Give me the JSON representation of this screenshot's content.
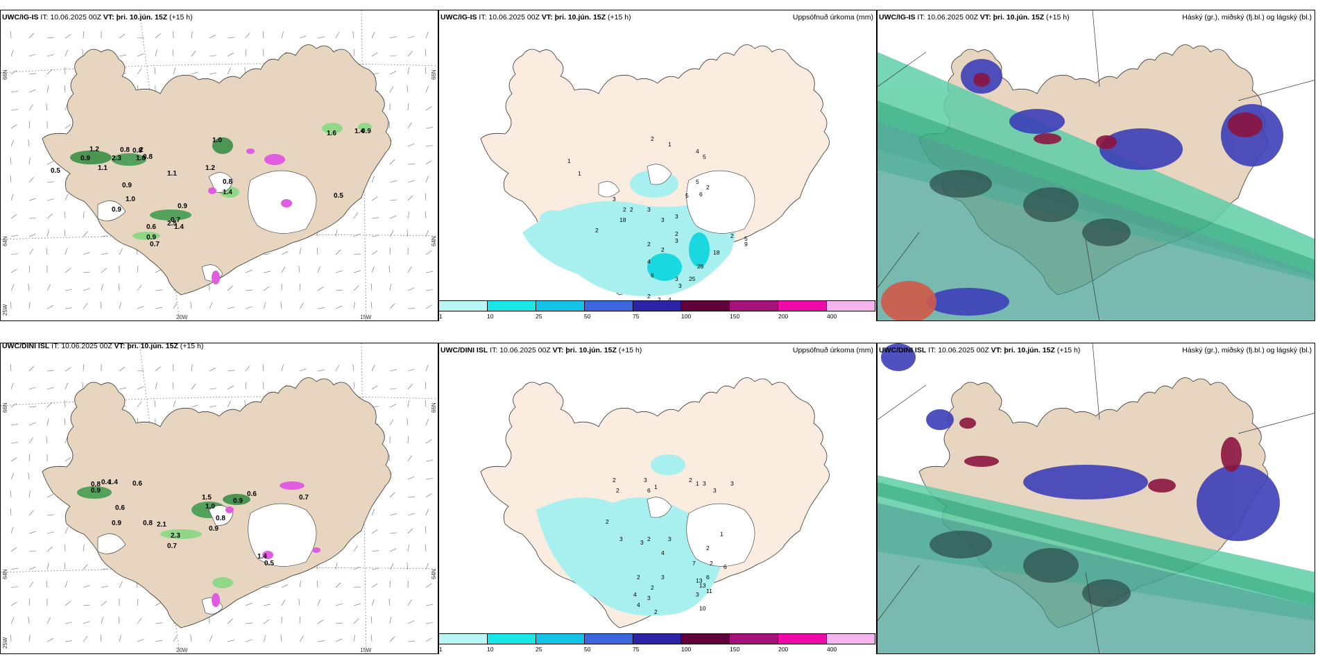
{
  "rows": [
    {
      "model": "UWC/IG-IS",
      "it_label": "IT:",
      "it_value": "10.06.2025 00Z",
      "vt_label": "VT:",
      "vt_value": "þri. 10.jún. 15Z",
      "lead": "(+15 h)"
    },
    {
      "model": "UWC/DINI ISL",
      "it_label": "IT:",
      "it_value": "10.06.2025 00Z",
      "vt_label": "VT:",
      "vt_value": "þri. 10.jún. 15Z",
      "lead": "(+15 h)"
    }
  ],
  "precip_title": "Uppsöfnuð úrkoma (mm)",
  "cloud_title": "Háský (gr.), miðský (fj.bl.) og lágský (bl.)",
  "colorbar": {
    "colors": [
      "#b9f7f7",
      "#19e8e8",
      "#13c3e8",
      "#3a67e0",
      "#2b24a8",
      "#62003c",
      "#a8107a",
      "#f00aa8",
      "#f4b4ee"
    ],
    "ticks": [
      "1",
      "10",
      "25",
      "50",
      "75",
      "100",
      "150",
      "200",
      "400"
    ]
  },
  "axis_labels": {
    "lat_66": "66N",
    "lat_64": "64N",
    "lon_25": "25W",
    "lon_20": "20W",
    "lon_15": "15W"
  },
  "wind_labels_row1": [
    "0.5",
    "0.9",
    "1.2",
    "2.3",
    "0.8",
    "0.8",
    "2",
    "0.8",
    "1.0",
    "1.1",
    "1.1",
    "0.9",
    "1.0",
    "0.9",
    "0.9",
    "0.7",
    "2.5",
    "0.6",
    "0.9",
    "0.7",
    "1.4",
    "1.2",
    "0.8",
    "1.4",
    "1.0",
    "0.5",
    "1.6",
    "1.4",
    "0.9"
  ],
  "wind_labels_row2": [
    "0.8",
    "0.9",
    "0.4",
    "1.4",
    "0.6",
    "0.6",
    "0.9",
    "0.8",
    "2.1",
    "2.3",
    "0.7",
    "1.5",
    "1.0",
    "0.8",
    "0.9",
    "0.6",
    "0.7",
    "0.9",
    "1.4",
    "0.5"
  ],
  "precip_labels_row1": [
    "1",
    "1",
    "2",
    "1",
    "4",
    "5",
    "5",
    "6",
    "5",
    "2",
    "3",
    "2",
    "2",
    "2",
    "3",
    "3",
    "3",
    "2",
    "2",
    "2",
    "3",
    "4",
    "6",
    "3",
    "2",
    "3",
    "2",
    "5",
    "18",
    "9",
    "28",
    "25",
    "18",
    "4",
    "2",
    "2"
  ],
  "precip_labels_row2": [
    "2",
    "2",
    "2",
    "3",
    "6",
    "1",
    "1",
    "2",
    "3",
    "3",
    "3",
    "2",
    "3",
    "3",
    "3",
    "1",
    "2",
    "2",
    "7",
    "6",
    "6",
    "13",
    "13",
    "11",
    "3",
    "10",
    "4",
    "3",
    "2",
    "2",
    "4",
    "3",
    "4",
    "2"
  ]
}
